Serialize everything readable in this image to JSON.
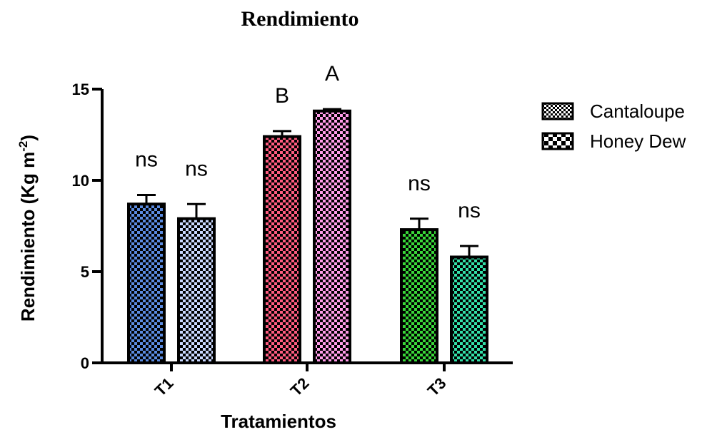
{
  "chart_data": {
    "type": "bar",
    "title": "Rendimiento",
    "xlabel": "Tratamientos",
    "ylabel": "Rendimiento (Kg m",
    "ylabel_sup": "-2",
    "ylabel_close": ")",
    "categories": [
      "T1",
      "T2",
      "T3"
    ],
    "ylim": [
      0,
      15
    ],
    "yticks": [
      0,
      5,
      10,
      15
    ],
    "legend_position": "right",
    "series": [
      {
        "name": "Cantaloupe",
        "values": [
          8.7,
          12.4,
          7.3
        ],
        "errors": [
          0.5,
          0.3,
          0.6
        ],
        "annotations": [
          "ns",
          "B",
          "ns"
        ]
      },
      {
        "name": "Honey Dew",
        "values": [
          7.9,
          13.8,
          5.8
        ],
        "errors": [
          0.8,
          0.1,
          0.6
        ],
        "annotations": [
          "ns",
          "A",
          "ns"
        ]
      }
    ],
    "bar_colors": [
      [
        "#5b8be0",
        "#ff5c80",
        "#39d839"
      ],
      [
        "#c9d8ff",
        "#ff9ce8",
        "#33e0a8"
      ]
    ]
  }
}
